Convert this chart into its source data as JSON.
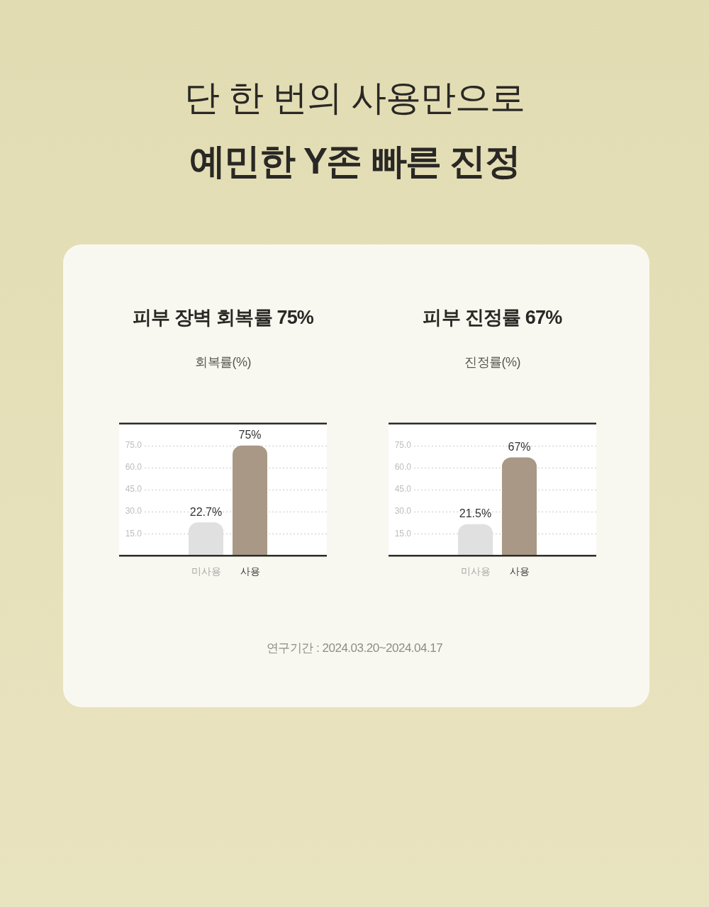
{
  "chart_data": [
    {
      "type": "other",
      "title": "단 한 번의 사용만으로",
      "subtitle": "예민한 Y존 빠른 진정"
    },
    {
      "type": "bar",
      "title": "피부 장벽 회복률 75%",
      "ylabel": "회복률(%)",
      "categories": [
        "미사용",
        "사용"
      ],
      "values": [
        22.7,
        75
      ],
      "colors": [
        "#e0e0e0",
        "#a89885"
      ],
      "value_labels": [
        "22.7%",
        "75%"
      ],
      "ylim": [
        0,
        90
      ],
      "yticks": [
        {
          "value": 15,
          "label": "15.0"
        },
        {
          "value": 30,
          "label": "30.0"
        },
        {
          "value": 45,
          "label": "45.0"
        },
        {
          "value": 60,
          "label": "60.0"
        },
        {
          "value": 75,
          "label": "75.0"
        }
      ],
      "grid": "y"
    },
    {
      "type": "bar",
      "title": "피부 진정률 67%",
      "ylabel": "진정률(%)",
      "categories": [
        "미사용",
        "사용"
      ],
      "values": [
        21.5,
        67
      ],
      "colors": [
        "#e0e0e0",
        "#a89885"
      ],
      "value_labels": [
        "21.5%",
        "67%"
      ],
      "ylim": [
        0,
        90
      ],
      "yticks": [
        {
          "value": 15,
          "label": "15.0"
        },
        {
          "value": 30,
          "label": "30.0"
        },
        {
          "value": 45,
          "label": "45.0"
        },
        {
          "value": 60,
          "label": "60.0"
        },
        {
          "value": 75,
          "label": "75.0"
        }
      ],
      "grid": "y"
    },
    {
      "type": "other",
      "annotations": [
        "연구기간 : 2024.03.20~2024.04.17"
      ]
    }
  ]
}
